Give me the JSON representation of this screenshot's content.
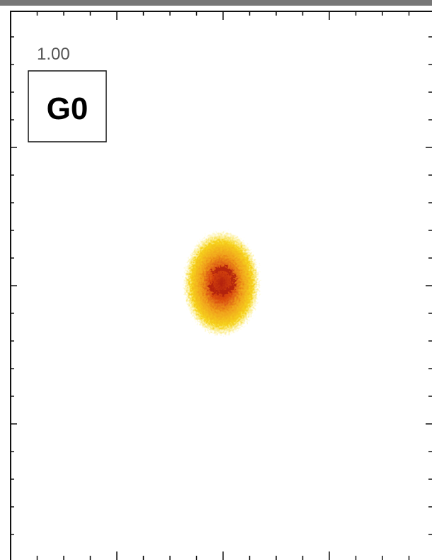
{
  "time_label": "1.00",
  "panel_label": "G0"
}
